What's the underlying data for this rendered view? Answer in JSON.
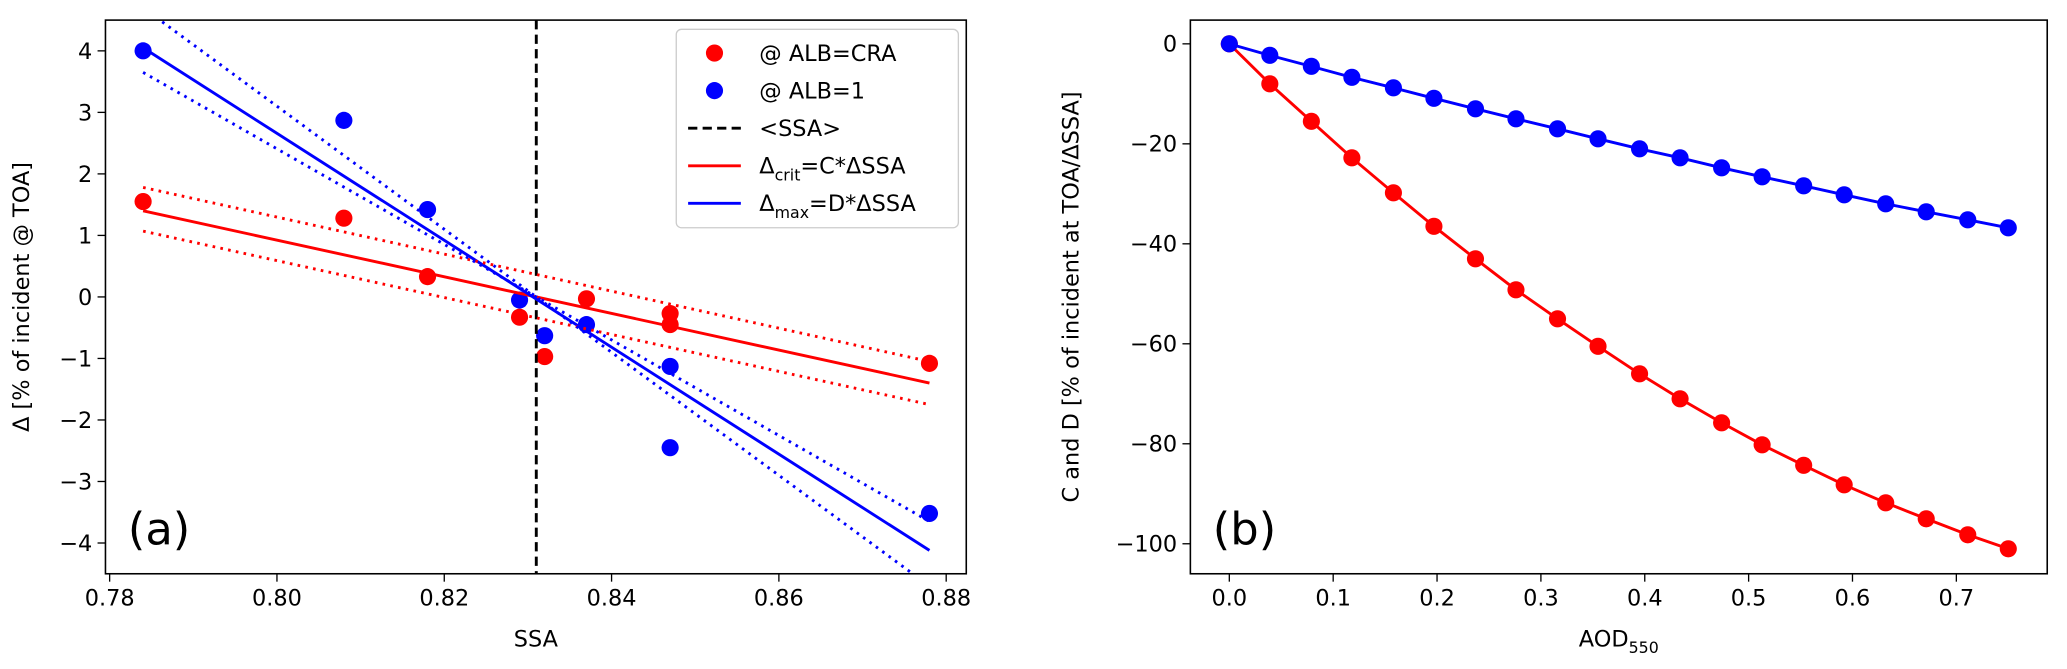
{
  "chart_data": [
    {
      "type": "scatter",
      "annotation": "(a)",
      "xlabel": "SSA",
      "ylabel": "Δ [% of incident @ TOA]",
      "xlim": [
        0.7795,
        0.8824
      ],
      "ylim": [
        -4.5,
        4.5
      ],
      "xticks": [
        0.78,
        {
          "value": 0.8,
          "label": "0.80"
        },
        0.82,
        0.84,
        0.86,
        0.88
      ],
      "yticks": [
        {
          "value": -4,
          "label": "−4"
        },
        {
          "value": -3,
          "label": "−3"
        },
        {
          "value": -2,
          "label": "−2"
        },
        {
          "value": -1,
          "label": "−1"
        },
        0,
        1,
        2,
        3,
        4
      ],
      "legend": "upper right",
      "series": [
        {
          "name": "@ ALB=CRA",
          "kind": "scatter",
          "color": "#ff0000",
          "x": [
            0.784,
            0.808,
            0.818,
            0.829,
            0.832,
            0.837,
            0.847,
            0.847,
            0.878
          ],
          "values": [
            1.55,
            1.28,
            0.33,
            -0.33,
            -0.97,
            -0.03,
            -0.27,
            -0.45,
            -1.08
          ]
        },
        {
          "name": "@ ALB=1",
          "kind": "scatter",
          "color": "#0000ff",
          "x": [
            0.784,
            0.808,
            0.818,
            0.829,
            0.832,
            0.837,
            0.847,
            0.847,
            0.878
          ],
          "values": [
            4.0,
            2.87,
            1.42,
            -0.05,
            -0.63,
            -0.45,
            -1.13,
            -2.45,
            -3.52
          ]
        },
        {
          "name": "<SSA>",
          "kind": "vline",
          "color": "#000000",
          "style": "dashed",
          "x": [
            0.831
          ]
        },
        {
          "name": [
            "Δ",
            "crit",
            "=C*ΔSSA"
          ],
          "kind": "line",
          "color": "#ff0000",
          "style": "solid",
          "x": [
            0.784,
            0.878
          ],
          "values": [
            1.4,
            -1.4
          ]
        },
        {
          "name": [
            "Δ",
            "max",
            "=D*ΔSSA"
          ],
          "kind": "line",
          "color": "#0000ff",
          "style": "solid",
          "x": [
            0.784,
            0.878
          ],
          "values": [
            4.05,
            -4.12
          ]
        },
        {
          "kind": "line",
          "color": "#ff0000",
          "style": "dotted",
          "x": [
            0.784,
            0.878
          ],
          "values": [
            1.78,
            -1.05
          ]
        },
        {
          "kind": "line",
          "color": "#ff0000",
          "style": "dotted",
          "x": [
            0.784,
            0.878
          ],
          "values": [
            1.07,
            -1.75
          ]
        },
        {
          "kind": "line",
          "color": "#0000ff",
          "style": "dotted",
          "x": [
            0.784,
            0.878
          ],
          "values": [
            4.7,
            -4.7
          ]
        },
        {
          "kind": "line",
          "color": "#0000ff",
          "style": "dotted",
          "x": [
            0.784,
            0.878
          ],
          "values": [
            3.65,
            -3.65
          ]
        }
      ]
    },
    {
      "type": "line",
      "annotation": "(b)",
      "xlabel": [
        "AOD",
        "550"
      ],
      "ylabel": "C and D [% of incident at TOA/ΔSSA]",
      "xlim": [
        -0.0375,
        0.7875
      ],
      "ylim": [
        -106,
        4.75
      ],
      "xticks": [
        {
          "value": 0,
          "label": "0.0"
        },
        0.1,
        0.2,
        0.3,
        0.4,
        0.5,
        0.6,
        0.7
      ],
      "yticks": [
        {
          "value": -100,
          "label": "−100"
        },
        {
          "value": -80,
          "label": "−80"
        },
        {
          "value": -60,
          "label": "−60"
        },
        {
          "value": -40,
          "label": "−40"
        },
        {
          "value": -20,
          "label": "−20"
        },
        0
      ],
      "series": [
        {
          "kind": "line",
          "marker": true,
          "color": "#ff0000",
          "style": "solid",
          "x": [
            0,
            0.039,
            0.079,
            0.118,
            0.158,
            0.197,
            0.237,
            0.276,
            0.316,
            0.355,
            0.395,
            0.434,
            0.474,
            0.513,
            0.553,
            0.592,
            0.632,
            0.671,
            0.711,
            0.75
          ],
          "values": [
            0,
            -8,
            -15.5,
            -22.8,
            -29.8,
            -36.5,
            -43,
            -49.2,
            -55,
            -60.5,
            -66,
            -71,
            -75.8,
            -80.2,
            -84.3,
            -88.2,
            -91.8,
            -95,
            -98.2,
            -101
          ]
        },
        {
          "kind": "line",
          "marker": true,
          "color": "#0000ff",
          "style": "solid",
          "x": [
            0,
            0.039,
            0.079,
            0.118,
            0.158,
            0.197,
            0.237,
            0.276,
            0.316,
            0.355,
            0.395,
            0.434,
            0.474,
            0.513,
            0.553,
            0.592,
            0.632,
            0.671,
            0.711,
            0.75
          ],
          "values": [
            0,
            -2.3,
            -4.5,
            -6.7,
            -8.8,
            -10.9,
            -13,
            -15,
            -17,
            -19,
            -21,
            -22.8,
            -24.8,
            -26.6,
            -28.4,
            -30.2,
            -32,
            -33.6,
            -35.2,
            -36.8
          ]
        }
      ]
    }
  ]
}
